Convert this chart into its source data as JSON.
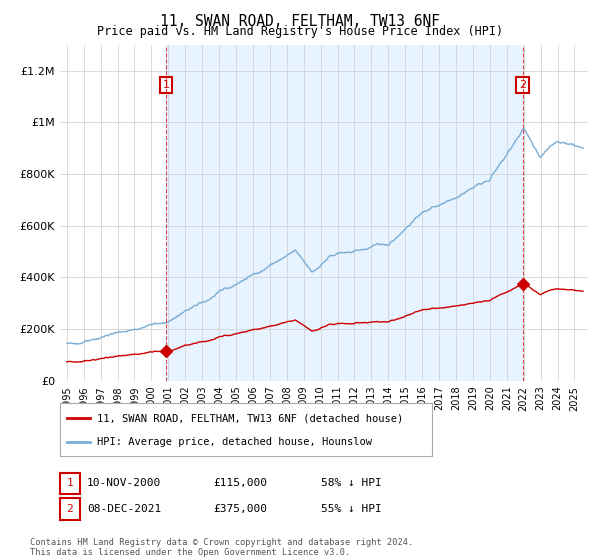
{
  "title": "11, SWAN ROAD, FELTHAM, TW13 6NF",
  "subtitle": "Price paid vs. HM Land Registry's House Price Index (HPI)",
  "ylim": [
    0,
    1300000
  ],
  "yticks": [
    0,
    200000,
    400000,
    600000,
    800000,
    1000000,
    1200000
  ],
  "ytick_labels": [
    "£0",
    "£200K",
    "£400K",
    "£600K",
    "£800K",
    "£1M",
    "£1.2M"
  ],
  "bg_color": "#ffffff",
  "grid_color": "#cccccc",
  "shade_color": "#ddeeff",
  "sale1_date": 2000.87,
  "sale1_price": 115000,
  "sale2_date": 2021.93,
  "sale2_price": 375000,
  "sale1_label": "1",
  "sale2_label": "2",
  "legend_property": "11, SWAN ROAD, FELTHAM, TW13 6NF (detached house)",
  "legend_hpi": "HPI: Average price, detached house, Hounslow",
  "footer": "Contains HM Land Registry data © Crown copyright and database right 2024.\nThis data is licensed under the Open Government Licence v3.0.",
  "property_line_color": "#cc0000",
  "hpi_line_color": "#7aadd4",
  "vline_color": "#cc0000",
  "ann1_date": "10-NOV-2000",
  "ann1_price": "£115,000",
  "ann1_pct": "58% ↓ HPI",
  "ann2_date": "08-DEC-2021",
  "ann2_price": "£375,000",
  "ann2_pct": "55% ↓ HPI"
}
